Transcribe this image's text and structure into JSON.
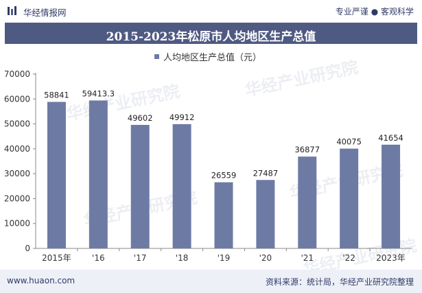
{
  "header": {
    "brand": "华经情报网",
    "tagline": "专业严谨 ● 客观科学"
  },
  "title": "2015-2023年松原市人均地区生产总值",
  "legend": "人均地区生产总值（元）",
  "footer": {
    "site": "www.huaon.com",
    "source": "资料来源：统计局，华经产业研究院整理"
  },
  "watermark": "华经产业研究院",
  "colors": {
    "bar": "#6d7ba4",
    "titlebar": "#4f5a83",
    "axis": "#888888"
  },
  "chart_data": {
    "type": "bar",
    "title": "2015-2023年松原市人均地区生产总值",
    "categories": [
      "2015年",
      "'16",
      "'17",
      "'18",
      "'19",
      "'20",
      "'21",
      "'22",
      "2023年"
    ],
    "series": [
      {
        "name": "人均地区生产总值（元）",
        "values": [
          58841,
          59413.3,
          49602,
          49912,
          26559,
          27487,
          36877,
          40075,
          41654
        ]
      }
    ],
    "data_labels": [
      "58841",
      "59413.3",
      "49602",
      "49912",
      "26559",
      "27487",
      "36877",
      "40075",
      "41654"
    ],
    "y_ticks": [
      0,
      10000,
      20000,
      30000,
      40000,
      50000,
      60000,
      70000
    ],
    "ylim": [
      0,
      70000
    ],
    "xlabel": "",
    "ylabel": "",
    "grid": false,
    "legend_position": "top"
  }
}
